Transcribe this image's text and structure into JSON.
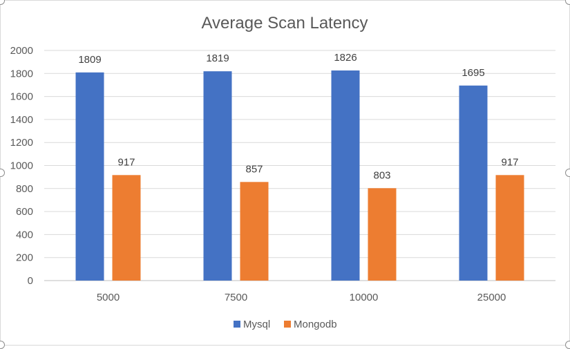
{
  "chart_data": {
    "type": "bar",
    "title": "Average Scan Latency",
    "xlabel": "",
    "ylabel": "",
    "categories": [
      "5000",
      "7500",
      "10000",
      "25000"
    ],
    "series": [
      {
        "name": "Mysql",
        "values": [
          1809,
          1819,
          1826,
          1695
        ],
        "color": "#4472c4"
      },
      {
        "name": "Mongodb",
        "values": [
          917,
          857,
          803,
          917
        ],
        "color": "#ed7d31"
      }
    ],
    "ylim": [
      0,
      2000
    ],
    "yticks": [
      "0",
      "200",
      "400",
      "600",
      "800",
      "1000",
      "1200",
      "1400",
      "1600",
      "1800",
      "2000"
    ],
    "grid": true,
    "legend_position": "bottom",
    "data_labels": true
  }
}
